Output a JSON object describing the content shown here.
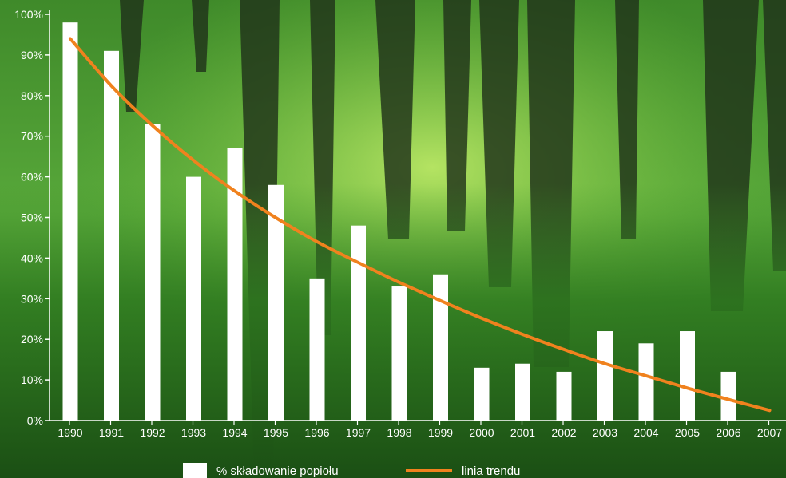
{
  "chart_data": {
    "type": "bar",
    "categories": [
      "1990",
      "1991",
      "1992",
      "1993",
      "1994",
      "1995",
      "1996",
      "1997",
      "1998",
      "1999",
      "2000",
      "2001",
      "2002",
      "2003",
      "2004",
      "2005",
      "2006",
      "2007"
    ],
    "series": [
      {
        "name": "% składowanie popiołu",
        "type": "bar",
        "color": "#ffffff",
        "values": [
          98,
          91,
          73,
          60,
          67,
          58,
          35,
          48,
          33,
          36,
          13,
          14,
          12,
          22,
          19,
          22,
          12,
          null
        ]
      },
      {
        "name": "linia trendu",
        "type": "line",
        "color": "#f0821e",
        "values": [
          94,
          82.4,
          72.6,
          64.0,
          56.5,
          49.9,
          44.0,
          38.9,
          34.0,
          29.5,
          25.2,
          21.2,
          17.5,
          14.0,
          11.0,
          8.0,
          5.2,
          2.5
        ]
      }
    ],
    "yticks": [
      "0%",
      "10%",
      "20%",
      "30%",
      "40%",
      "50%",
      "60%",
      "70%",
      "80%",
      "90%",
      "100%"
    ],
    "ylim": [
      0,
      100
    ],
    "xlabel": "",
    "ylabel": "",
    "legend": {
      "position": "bottom"
    },
    "grid": false,
    "background": "forest photograph"
  }
}
